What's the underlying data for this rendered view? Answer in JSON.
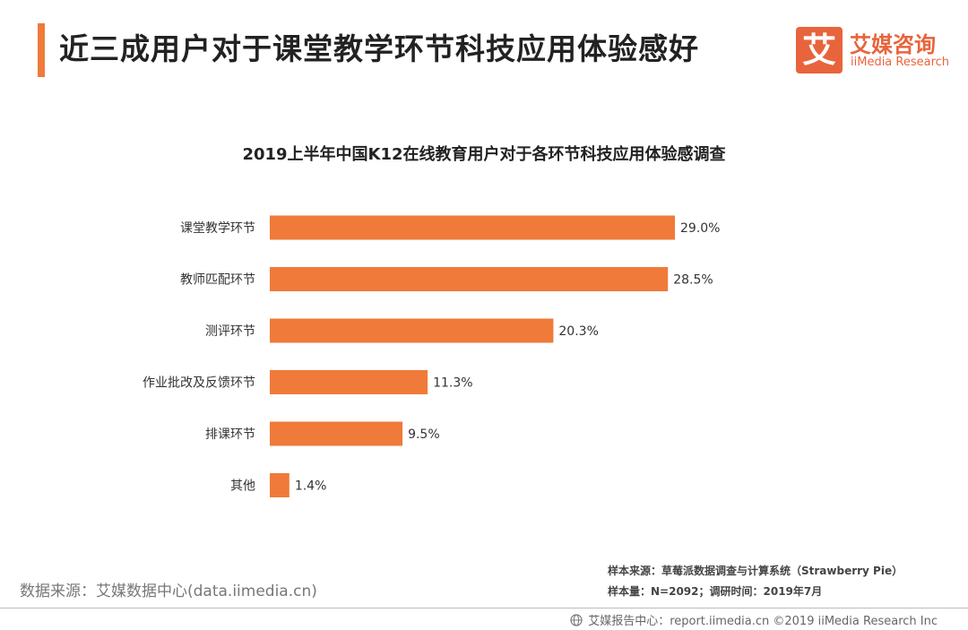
{
  "header": {
    "title": "近三成用户对于课堂教学环节科技应用体验感好"
  },
  "logo": {
    "mark": "艾",
    "name_cn": "艾媒咨询",
    "name_en": "iiMedia Research",
    "color": "#e8643c"
  },
  "chart_data": {
    "type": "bar",
    "orientation": "horizontal",
    "title": "2019上半年中国K12在线教育用户对于各环节科技应用体验感调查",
    "categories": [
      "课堂教学环节",
      "教师匹配环节",
      "测评环节",
      "作业批改及反馈环节",
      "排课环节",
      "其他"
    ],
    "values": [
      29.0,
      28.5,
      20.3,
      11.3,
      9.5,
      1.4
    ],
    "value_labels": [
      "29.0%",
      "28.5%",
      "20.3%",
      "11.3%",
      "9.5%",
      "1.4%"
    ],
    "bar_color": "#ef7a3a",
    "xlim": [
      0,
      29.0
    ],
    "grid": false
  },
  "source": {
    "left": "数据来源：艾媒数据中心(data.iimedia.cn)",
    "sample_source": "样本来源：草莓派数据调查与计算系统（Strawberry Pie）",
    "sample_info": "样本量：N=2092；调研时间：2019年7月"
  },
  "footer": {
    "text": "艾媒报告中心：report.iimedia.cn  ©2019  iiMedia Research Inc",
    "icon": "globe-icon"
  }
}
